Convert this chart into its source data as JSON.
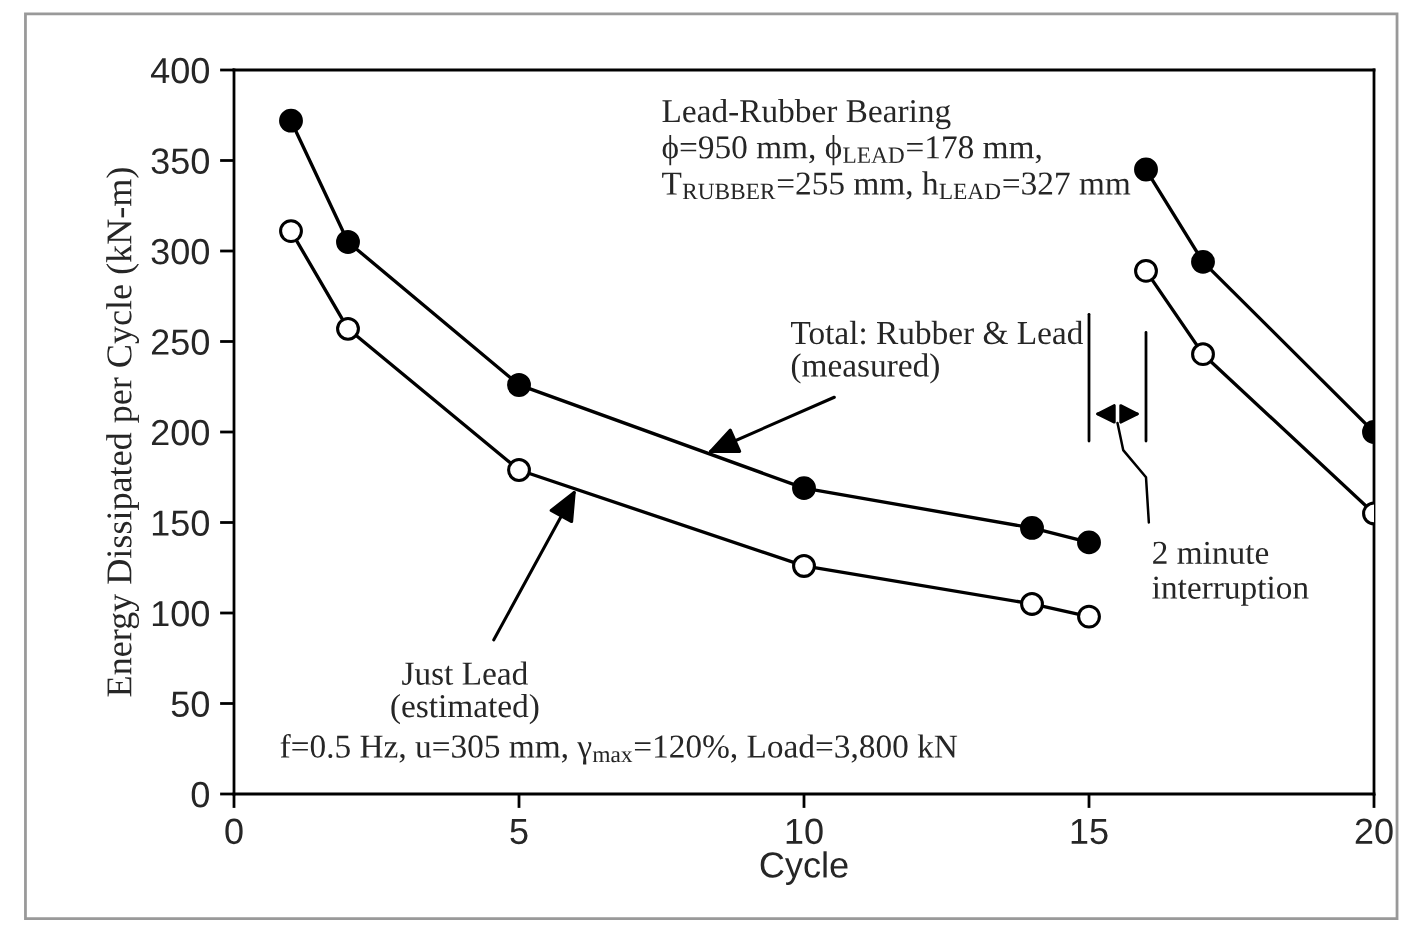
{
  "chart_data": {
    "type": "line",
    "xlabel": "Cycle",
    "ylabel": "Energy Dissipated per Cycle (kN-m)",
    "xlim": [
      0,
      20
    ],
    "xticks": [
      0,
      5,
      10,
      15,
      20
    ],
    "ylim": [
      0,
      400
    ],
    "yticks": [
      0,
      50,
      100,
      150,
      200,
      250,
      300,
      350,
      400
    ],
    "grid": false,
    "legend": false,
    "marker": "circle",
    "line_style": "solid",
    "series": [
      {
        "name": "Total: Rubber & Lead\n(measured)",
        "color": "#000000",
        "x": [
          1,
          2,
          5,
          10,
          14,
          15
        ],
        "values": [
          372,
          305,
          226,
          169,
          147,
          139
        ]
      },
      {
        "color": "#000000",
        "x": [
          16,
          17,
          20
        ],
        "values": [
          345,
          294,
          200
        ]
      },
      {
        "name": "Just Lead\n(estimated)",
        "color": "#000000",
        "x": [
          1,
          2,
          5,
          10,
          14,
          15
        ],
        "values": [
          311,
          257,
          179,
          126,
          105,
          98
        ]
      },
      {
        "color": "#000000",
        "x": [
          16,
          17,
          20
        ],
        "values": [
          289,
          243,
          155
        ]
      }
    ],
    "annotations": [
      "Lead-Rubber Bearing\nϕ=950 mm, ϕ$_{LEAD}$=178 mm,\nT$_{RUBBER}$=255 mm, h$_{LEAD}$=327 mm",
      "f=0.5 Hz, u=305 mm, γ$_{max}$=120%, Load=3,800 kN",
      "2 minute\ninterruption"
    ]
  }
}
